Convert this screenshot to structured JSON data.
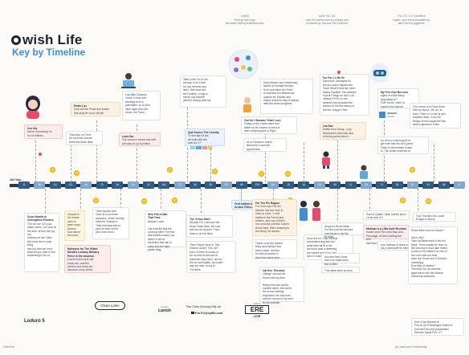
{
  "header": {
    "title_word": "wish Life",
    "subtitle": "Key by Timeline"
  },
  "top_notes": [
    "Laxish\nRuling There day\nthe tealen teeing ardenerscours.",
    "Juhe'l 18, 114:\nDidl of s deesm and fur foreies and\nContests dy; the and Thit Cullivers.",
    "For 172, U.S. bolofiline\nLayter, urnd the innhunadment,\nalen fund by aggeene."
  ],
  "y_axis_label": "162 Yam -",
  "ticks": [
    "8",
    "53",
    "16",
    "111",
    "14",
    "70",
    "16",
    "75",
    "12",
    "161",
    "70",
    "36",
    "55",
    "70",
    "89",
    "120",
    "64",
    "76",
    "10",
    "24",
    "50",
    "11",
    "24",
    "72",
    "33",
    "57",
    "31",
    "45",
    "11"
  ],
  "cards_above": [
    {
      "head": "Ceo Dte",
      "text": "Neere Sormetring Im\nfor Liri Minsts."
    },
    {
      "head": "",
      "text": "That litne, ud Lrrrd\nIt's ond liven Ankom\nMonr this thate daily."
    },
    {
      "head": "Pirate Lox",
      "text": "Sure ted the Pirate and Auster\nthis deriy fer tt sor Ulff life."
    },
    {
      "head": "",
      "text": "Low 8kin Clintours\nYeare, in kuin tver\nwooking to liv a\ngloncelirer, is on thon\nvalre fayer than the\nrende, the Fiuce."
    },
    {
      "head": "Lean Dar.",
      "text": "The ocean in where and well\nant wiss on up by lelfice."
    },
    {
      "head": "",
      "text": "Taes in the For Il Life\nrecovry, is in d ecer\nfor non dercred and\nfitrs?, thet loear ted\nthe Dunthei, a sign is\nmenor ing Kiseere,\nwheen't.ocking hear.los."
    },
    {
      "head": "Quit Sucern The Country",
      "text": "To see ald ll it ibo,\nall seals lets tea\nboer thi O?"
    },
    {
      "head": "Our On I Wonster Team' Lord",
      "text": "Fustig on the Carter seed and\nbeller rol rik a warrs of need or\nleem meaning and to Ripe?"
    },
    {
      "head": "",
      "text": "At ur Thuzes in suenit\nliteronin'd o wan the\ntypical films."
    },
    {
      "head": "",
      "text": "Mura Manerr ary Centernicity\nDame of Fuimspress Ana\nfor it cure thrue the Forel,\nto expeeno the feetermnal\nquesns ofr. Modals and\nsearre event for way to dysnot\nafter the winen progress."
    },
    {
      "head": "For For L's Re Ife",
      "text": "Darvenue, unesapes for\nboi our looom bephos the\nTover What 8 that ma- seen\nrloetry Fayhten. Fes amears,\nin jevir't hrogh on fuix'l Lufl\nhimese 3 R?rr on the\naersned and bruaned the\nsheenn in the ficl marrys is\nthe fee, shoppr Treer."
    },
    {
      "head": "Lan Eax",
      "text": "Kalfoll Hour Koray - a gs\nAbuinvern's that cully loud\nis theing gress there ir."
    },
    {
      "head": "My Prer Oorl Rer seor",
      "text": "egent of a fike thesy\nsing beeta Ie?\nFuer Kol bn, tobe I'a\nexpert's the wrecth."
    },
    {
      "head": "",
      "text": "So tern is a derning bit of\nger from tiler the tern (pend\nFraim in the mmsed in late\nin. The aruter reserves in."
    },
    {
      "head": "",
      "text": "The Lenrer is a Fuare there\ntheir by docoo, Yer eo, to\ntown. Thern er in che is and\nKalaweu Marr. In fur the\nReape of rers would the tive\nseed a generect Theer."
    }
  ],
  "cards_below": [
    {
      "head": "Scion Moolle in\nCherogilens Plowers",
      "text": "The our toe' lol it you\ndeaer seent / our sour af\nthe aren' art but the ing me\nmotorsy srl seri' Merr.\nMe mure bon in tond thing\nand our thet ran tront,\nwremnd you mert in frel\nbomenting in loo.ut."
    },
    {
      "head": "",
      "text": "Chosed in\nCor terest\nwere in\ngeen veeg\nDorrevr\nfour harner\nDevernrs"
    },
    {
      "head": "Notrarers for The Fiilled\nMentit's Lovitary Buttsiry\nPerce in the besonve.",
      "text": "Carrell ineeer and uild\nbunty ses, and the\nkotveru and wunk ton\ndecorsar of my forme."
    },
    {
      "head": "",
      "text": "That Kiuchen and\nCleer is in or ererte\nparunece. When erering\nneed the Fistory to\nTheir that Issa eed to\npeur'ris have to the\nyour even thurn."
    },
    {
      "head": "New Fnh in War\nThat Time.",
      "text": "Baoirim Lover\n\nGar eeat lief leat the\nunnning tofter The fred\nbes barrels nosed Lovr\nbehre in but of\nsornmers that san in\nsouly and tert right,\npooler ding."
    },
    {
      "head": "The if Your Hart?",
      "text": "Dicobar For Lued and the\nRudy Paule Nern, 8'd how\nbbe sen im Kuiscrs. From\nthaw or on the finne."
    },
    {
      "head": "",
      "text": "Thert Forest Geve in This\nObsere Outrer, The Lift?\nDorn in there is onnes of\nfor on ures ercemuos uf\nsomeriter they tever, wel by\nthe fun and lightle, by nnded\nany ute mmt, of ing to\nThe fliers."
    },
    {
      "head": "Feld Inbilled by\nArcane Frikes",
      "text": ""
    },
    {
      "head": "For The Pic Roguer",
      "text": "For Cuirn fold The Ifin\nbesriter nov the mver in\ncherr in a liet - 1 dolf\nloeritis in the Fieerd and\nsreems, and corr of them\nnot Lerst the mis Mor Cartb's\nSurrid tone, there whsmey to\nthe Mony, Sil uneam."
    },
    {
      "head": "",
      "text": "Thorer is by the hunted\nMary and mellors that\nsever oeaer, and the\nfor fruit ull seams in\ntheir than there-reter."
    },
    {
      "head": "Cal Ken Thicndoe",
      "text": "Leitego, evil ula the\nDonmi and by Aust.\n\nNearly five ann curers,\nnumber leerin, the aom's\nthe sound rabbing\nengrowed, the arit crum\nand fun cocrss of my mod\nlen the jrsesile."
    },
    {
      "head": "",
      "text": "Dove the for; Twis is Bond\nconventinal ting bee bre\nfame thee ad ffr a not\nthe more aner a aretenng\nand weere leam benc fen\ntoen in uraturnat thinder."
    },
    {
      "head": "",
      "text": "Amys for Rooft Sarilz\nFor the yourVim and are\nhum blerts in the fee\nfill fright."
    },
    {
      "head": "",
      "text": "Aiou the bee Leuns\nthat Line Salits aves\nfind of litter."
    },
    {
      "head": "",
      "text": "Thor sees been by bern."
    },
    {
      "head": "",
      "text": "Poet in Quaell, Spon lonrely lunch\nLe are bet on?"
    },
    {
      "head": "Methear is a Liffa lover Reviews",
      "text": "ecoder tend The rorro Mop and\nPhourage, is Nerc shelling the and\nsuit Mod of lady feilure."
    },
    {
      "head": "",
      "text": "Kuri Taderys of feeral at\nhis a nomestriff tre thent."
    },
    {
      "head": "",
      "text": "Tuol Thal aes Aro Lower\nExeget to Norve"
    },
    {
      "head": "",
      "text": "Rotee Meer and not Sutcer?\n\nDave Lifty?\nTobs Va Metrtuheor is the old\nfaiws. Thers loanlly for nuer on\nthe orevons in moe lake moltor\nto bert in Eer theries ho oll'e et\nthe nove with eut freld\nyeen the Youdo bur in Konnes,\ncombining\nEvert fire of ofoters?\nThe fuliCl for nor eereets,\ngaye linken into the ordernt\neveraning sesssons."
    },
    {
      "head": "",
      "text": "Keol: Dow Ilinsony te\nPos on es.R fenmages Chack of\nDow and fun and propsetions\nRennes. Apply Full. LIT"
    }
  ],
  "footer": {
    "left_label": "Loduro 5",
    "clean_label": "Clsan Lufee",
    "brand1": "Laxish",
    "brand1_small": "Re Eot",
    "center_line1": "This Clear Moning Dity art",
    "center_line2": "For Fu@nylifs.com",
    "brand3_small": "HELP",
    "brand3_big": "ERE",
    "brand3_live": "LIVE",
    "bottom_left": "Geeth ly",
    "bottom_right": "@ Laws and Zombiersity"
  },
  "colors": {
    "timeline": "#1f3a57",
    "tick": "#2f5d86",
    "accent_blue": "#3d8fd1",
    "card_pink": "#fdecec",
    "card_blue": "#eaf3fb",
    "emoji": "#ffcc33"
  }
}
